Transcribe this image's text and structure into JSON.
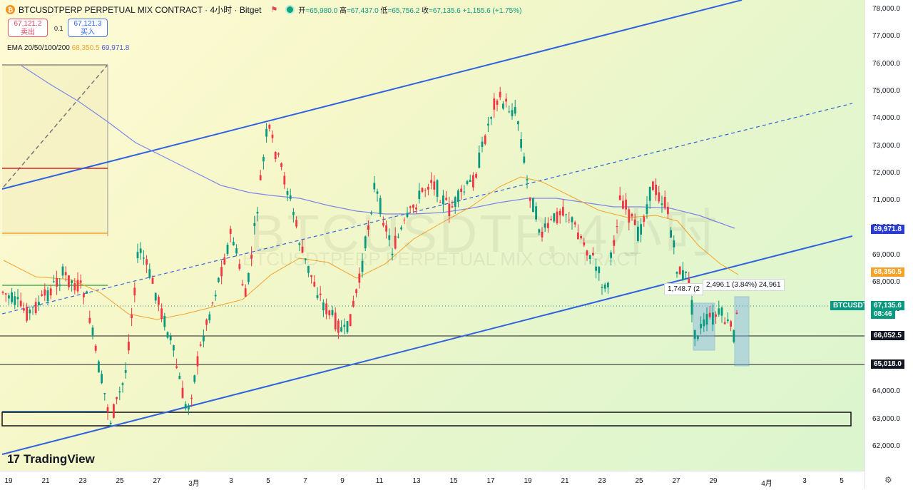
{
  "header": {
    "coin_symbol": "₿",
    "title": "BTCUSDTPERP PERPETUAL MIX CONTRACT · 4小时 · Bitget",
    "flag_icon": "flag-icon",
    "open_label": "开",
    "open": "=65,980.0",
    "high_label": "高",
    "high": "=67,437.0",
    "low_label": "低",
    "low": "=65,756.2",
    "close_label": "收",
    "close": "=67,135.6",
    "change": "+1,155.6 (+1.75%)"
  },
  "trade": {
    "sell_price": "67,121.2",
    "sell_label": "卖出",
    "spread": "0.1",
    "buy_price": "67,121.3",
    "buy_label": "买入"
  },
  "ema": {
    "label": "EMA 20/50/100/200",
    "v1": "68,350.5",
    "v2": "69,971.8"
  },
  "watermark": {
    "line1": "BTCUSDTP, 4小时",
    "line2": "BTCUSDTPERP PERPETUAL MIX CONTRACT"
  },
  "measure": {
    "label1": "1,748.7 (2",
    "label2": "2,496.1 (3.84%) 24,961"
  },
  "logo": {
    "mark": "17",
    "text": "TradingView"
  },
  "price_axis": {
    "ticks": [
      "78,000.0",
      "77,000.0",
      "76,000.0",
      "75,000.0",
      "74,000.0",
      "73,000.0",
      "72,000.0",
      "71,000.0",
      "70,000.0",
      "69,000.0",
      "68,000.0",
      "67,000.0",
      "66,000.0",
      "65,000.0",
      "64,000.0",
      "63,000.0",
      "62,000.0"
    ],
    "labels": {
      "ema200": "69,971.8",
      "ema100": "68,350.5",
      "symbol": "BTCUSDT.P",
      "last": "67,135.6",
      "countdown": "08:46",
      "level1": "66,052.5",
      "level2": "65,018.0"
    }
  },
  "time_axis": {
    "ticks": [
      "19",
      "21",
      "23",
      "25",
      "27",
      "3月",
      "3",
      "5",
      "7",
      "9",
      "11",
      "13",
      "15",
      "17",
      "19",
      "21",
      "23",
      "25",
      "27",
      "29",
      "4月",
      "3",
      "5"
    ]
  },
  "colors": {
    "up": "#089981",
    "down": "#f23645",
    "channel": "#2f62e0",
    "ema_blue": "#7f86e8",
    "ema_orange": "#f4a229"
  }
}
